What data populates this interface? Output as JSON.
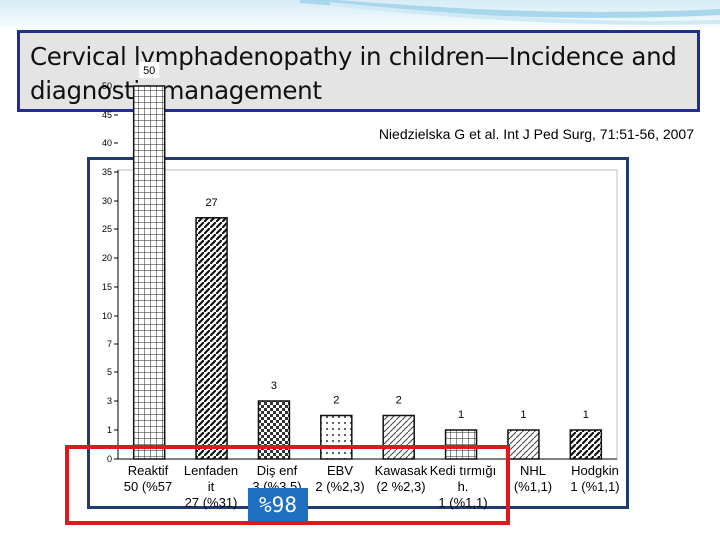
{
  "slide": {
    "title": "Cervical lymphadenopathy in children—Incidence and diagnostic management",
    "citation": "Niedzielska G et al. Int J Ped Surg, 71:51-56, 2007",
    "badge": "%98"
  },
  "colors": {
    "title_border": "#1f2f8f",
    "title_bg": "#e4e4e4",
    "chart_frame": "#1f3d73",
    "highlight_box": "#e3161b",
    "badge_bg": "#1f6fc2"
  },
  "chart_data": {
    "type": "bar",
    "scale": "piecewise",
    "y_ticks": [
      0,
      1,
      3,
      5,
      7,
      10,
      15,
      20,
      25,
      30,
      35,
      40,
      45,
      50
    ],
    "ylim": [
      0,
      50
    ],
    "grid": false,
    "categories": [
      "Reaktif\n50 (%57",
      "Lenfaden\nit\n27 (%31)",
      "Diş enf\n3 (%3,5)",
      "EBV\n2 (%2,3)",
      "Kawasak\n(2 %2,3)",
      "Kedi tırmığı\nh.\n1 (%1,1)",
      "NHL\n(%1,1)",
      "Hodgkin\n1 (%1,1)"
    ],
    "values": [
      50,
      27,
      3,
      2,
      2,
      1,
      1,
      1
    ],
    "data_labels": [
      "50",
      "27",
      "3",
      "2",
      "2",
      "1",
      "1",
      "1"
    ]
  }
}
